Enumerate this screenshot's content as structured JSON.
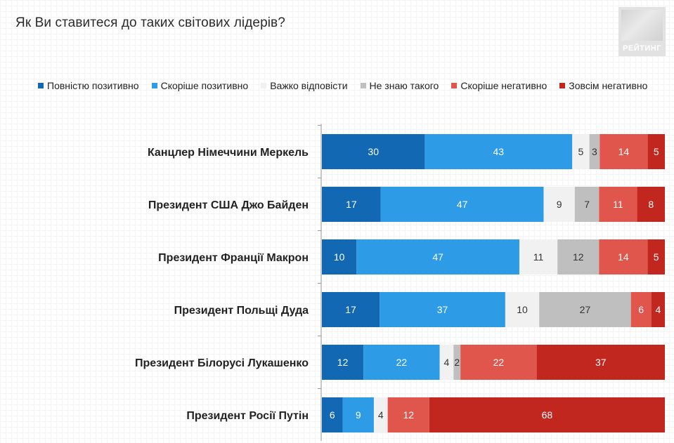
{
  "header": {
    "title": "Як Ви ставитеся до таких світових лідерів?",
    "logo_text": "РЕЙТИНГ"
  },
  "legend": [
    {
      "label": "Повністю позитивно",
      "color": "#1268b3"
    },
    {
      "label": "Скоріше позитивно",
      "color": "#2d9be6"
    },
    {
      "label": "Важко відповісти",
      "color": "#f1f1f1"
    },
    {
      "label": "Не знаю такого",
      "color": "#bfbfbf"
    },
    {
      "label": "Скоріше негативно",
      "color": "#e0564c"
    },
    {
      "label": "Зовсім негативно",
      "color": "#c1271f"
    }
  ],
  "chart_data": {
    "type": "bar",
    "orientation": "horizontal",
    "stacked": true,
    "title": "Як Ви ставитеся до таких світових лідерів?",
    "categories": [
      "Канцлер Німеччини Меркель",
      "Президент США Джо Байден",
      "Президент Франції Макрон",
      "Президент Польщі Дуда",
      "Президент Білорусі Лукашенко",
      "Президент Росії Путін"
    ],
    "series": [
      {
        "name": "Повністю позитивно",
        "color": "#1268b3",
        "label_color": "#ffffff",
        "values": [
          30,
          17,
          10,
          17,
          12,
          6
        ]
      },
      {
        "name": "Скоріше позитивно",
        "color": "#2d9be6",
        "label_color": "#ffffff",
        "values": [
          43,
          47,
          47,
          37,
          22,
          9
        ]
      },
      {
        "name": "Важко відповісти",
        "color": "#f1f1f1",
        "label_color": "#333333",
        "values": [
          5,
          9,
          11,
          10,
          4,
          4
        ]
      },
      {
        "name": "Не знаю такого",
        "color": "#bfbfbf",
        "label_color": "#333333",
        "values": [
          3,
          7,
          12,
          27,
          2,
          0
        ]
      },
      {
        "name": "Скоріше негативно",
        "color": "#e0564c",
        "label_color": "#ffffff",
        "values": [
          14,
          11,
          14,
          6,
          22,
          12
        ]
      },
      {
        "name": "Зовсім негативно",
        "color": "#c1271f",
        "label_color": "#ffffff",
        "values": [
          5,
          8,
          5,
          4,
          37,
          68
        ]
      }
    ],
    "legend_position": "top"
  }
}
